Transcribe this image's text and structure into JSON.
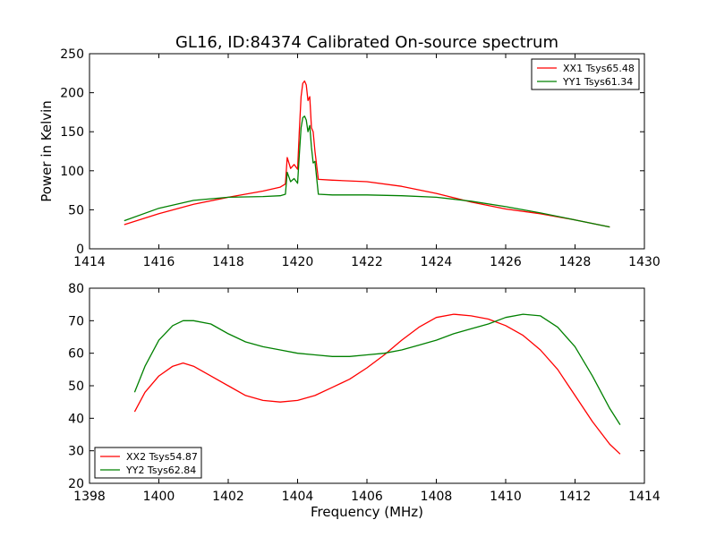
{
  "chart_data": [
    {
      "type": "line",
      "title": "GL16, ID:84374 Calibrated On-source spectrum",
      "xlabel": "",
      "ylabel": "Power in Kelvin",
      "xlim": [
        1414,
        1430
      ],
      "ylim": [
        0,
        250
      ],
      "xticks": [
        "1414",
        "1416",
        "1418",
        "1420",
        "1422",
        "1424",
        "1426",
        "1428",
        "1430"
      ],
      "yticks": [
        "0",
        "50",
        "100",
        "150",
        "200",
        "250"
      ],
      "legend": "top-right",
      "series": [
        {
          "name": "XX1 Tsys65.48",
          "color": "#ff0000",
          "x": [
            1415.0,
            1416.0,
            1417.0,
            1418.0,
            1419.0,
            1419.5,
            1419.65,
            1419.7,
            1419.8,
            1419.9,
            1420.0,
            1420.05,
            1420.1,
            1420.15,
            1420.2,
            1420.25,
            1420.3,
            1420.35,
            1420.4,
            1420.45,
            1420.5,
            1420.6,
            1421.0,
            1422.0,
            1423.0,
            1424.0,
            1425.0,
            1426.0,
            1427.0,
            1428.0,
            1429.0
          ],
          "y": [
            31,
            45,
            57,
            66,
            74,
            79,
            83,
            117,
            103,
            108,
            102,
            150,
            195,
            212,
            215,
            210,
            190,
            195,
            155,
            150,
            125,
            89,
            88,
            86,
            80,
            71,
            60,
            51,
            45,
            37,
            28
          ]
        },
        {
          "name": "YY1 Tsys61.34",
          "color": "#008000",
          "x": [
            1415.0,
            1416.0,
            1417.0,
            1418.0,
            1419.0,
            1419.5,
            1419.65,
            1419.7,
            1419.8,
            1419.9,
            1420.0,
            1420.05,
            1420.1,
            1420.15,
            1420.2,
            1420.25,
            1420.3,
            1420.35,
            1420.4,
            1420.45,
            1420.5,
            1420.6,
            1421.0,
            1422.0,
            1423.0,
            1424.0,
            1425.0,
            1426.0,
            1427.0,
            1428.0,
            1429.0
          ],
          "y": [
            36,
            52,
            62,
            66,
            67,
            68,
            70,
            98,
            86,
            90,
            84,
            120,
            155,
            168,
            170,
            165,
            150,
            158,
            130,
            110,
            112,
            70,
            69,
            69,
            68,
            66,
            61,
            54,
            46,
            37,
            28
          ]
        }
      ]
    },
    {
      "type": "line",
      "title": "",
      "xlabel": "Frequency (MHz)",
      "ylabel": "",
      "xlim": [
        1398,
        1414
      ],
      "ylim": [
        20,
        80
      ],
      "xticks": [
        "1398",
        "1400",
        "1402",
        "1404",
        "1406",
        "1408",
        "1410",
        "1412",
        "1414"
      ],
      "yticks": [
        "20",
        "30",
        "40",
        "50",
        "60",
        "70",
        "80"
      ],
      "legend": "bottom-left",
      "series": [
        {
          "name": "XX2 Tsys54.87",
          "color": "#ff0000",
          "x": [
            1399.3,
            1399.6,
            1400.0,
            1400.4,
            1400.7,
            1401.0,
            1401.5,
            1402.0,
            1402.5,
            1403.0,
            1403.5,
            1404.0,
            1404.5,
            1405.0,
            1405.5,
            1406.0,
            1406.5,
            1407.0,
            1407.5,
            1408.0,
            1408.5,
            1409.0,
            1409.5,
            1410.0,
            1410.5,
            1411.0,
            1411.5,
            1412.0,
            1412.5,
            1413.0,
            1413.3
          ],
          "y": [
            42,
            48,
            53,
            56,
            57,
            56,
            53,
            50,
            47,
            45.5,
            45,
            45.5,
            47,
            49.5,
            52,
            55.5,
            59.5,
            64,
            68,
            71,
            72,
            71.5,
            70.5,
            68.5,
            65.5,
            61,
            55,
            47,
            39,
            32,
            29
          ]
        },
        {
          "name": "YY2 Tsys62.84",
          "color": "#008000",
          "x": [
            1399.3,
            1399.6,
            1400.0,
            1400.4,
            1400.7,
            1401.0,
            1401.5,
            1402.0,
            1402.5,
            1403.0,
            1403.5,
            1404.0,
            1404.5,
            1405.0,
            1405.5,
            1406.0,
            1406.5,
            1407.0,
            1407.5,
            1408.0,
            1408.5,
            1409.0,
            1409.5,
            1410.0,
            1410.5,
            1411.0,
            1411.5,
            1412.0,
            1412.5,
            1413.0,
            1413.3
          ],
          "y": [
            48,
            56,
            64,
            68.5,
            70,
            70,
            69,
            66,
            63.5,
            62,
            61,
            60,
            59.5,
            59,
            59,
            59.5,
            60,
            61,
            62.5,
            64,
            66,
            67.5,
            69,
            71,
            72,
            71.5,
            68,
            62,
            53,
            43,
            38
          ]
        }
      ]
    }
  ]
}
